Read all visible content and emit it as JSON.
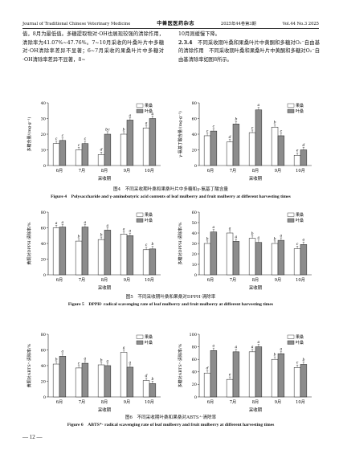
{
  "header": {
    "journal": "Journal of Traditional Chinese Veterinary Medicine",
    "logo": "中兽医医药杂志",
    "issue": "2025年44卷第3期",
    "volume": "Vol.44  No.3  2025"
  },
  "body": {
    "left": "值，8月为最低值。多糖提取物对·OH也展现较强的清除作用，清除率为41.07%~47.76%。7~10月采收的叶桑叶片中多糖对·OH清除率差异不显著；6~7月采收的果桑叶片中多糖对·OH清除率差异不显著，8~",
    "right_cont": "10月则缓慢下降。",
    "section_num": "2.3.4",
    "section_text": "不同采收期叶桑和果桑叶片中黄酮和多糖对O₂⁻自由基的清除作用　不同采收期叶桑和果桑叶片中黄酮和多糖对O₂⁻自由基清除率如图8所示。"
  },
  "figures": {
    "fig4": {
      "title_cn": "图4　不同采收期叶桑和果桑叶片中多糖和γ-氨基丁酸含量",
      "title_en": "Figure 4　Polysaccharide and γ-aminobutyric acid contents of leaf mulberry and fruit mulberry at different harvesting times"
    },
    "fig5": {
      "title_cn": "图5　不同采收期叶桑和果桑对DPPH·清除率",
      "title_en": "Figure 5　DPPH· radical scavenging rate of leaf mulberry and fruit mulberry at different harvesting times"
    },
    "fig6": {
      "title_cn": "图6　不同采收期叶桑和果桑对ABTS⁺·清除率",
      "title_en": "Figure 6　ABTS⁺· radical scavenging rate of leaf mulberry and fruit mulberry at different harvesting times"
    }
  },
  "page_number": "— 12 —",
  "colors": {
    "fruit_bar": "#ffffff",
    "leaf_bar": "#8c8c8c",
    "axis": "#222222"
  },
  "chart_data": [
    {
      "id": "fig4a",
      "type": "bar",
      "xlabel": "采收期",
      "ylabel": "多糖含量/(mg·g⁻¹)",
      "categories": [
        "6月",
        "7月",
        "8月",
        "9月",
        "10月"
      ],
      "ylim": [
        0,
        40
      ],
      "yticks": [
        0,
        10,
        20,
        30,
        40
      ],
      "legend": [
        "果桑",
        "叶桑"
      ],
      "series": [
        {
          "name": "果桑",
          "values": [
            14,
            10,
            7,
            20,
            24
          ],
          "letters": [
            "c",
            "c",
            "d",
            "b",
            "a"
          ]
        },
        {
          "name": "叶桑",
          "values": [
            16,
            14,
            20,
            29,
            30
          ],
          "letters": [
            "c",
            "c",
            "bc",
            "a",
            "a"
          ]
        }
      ]
    },
    {
      "id": "fig4b",
      "type": "bar",
      "xlabel": "采收期",
      "ylabel": "γ-氨基丁酸含量/(mg·g⁻¹)",
      "categories": [
        "6月",
        "7月",
        "8月",
        "9月",
        "10月"
      ],
      "ylim": [
        0,
        80
      ],
      "yticks": [
        0,
        20,
        40,
        60,
        80
      ],
      "legend": [
        "果桑",
        "叶桑"
      ],
      "series": [
        {
          "name": "果桑",
          "values": [
            38,
            30,
            42,
            49,
            13
          ],
          "letters": [
            "c",
            "d",
            "c",
            "b",
            "e"
          ]
        },
        {
          "name": "叶桑",
          "values": [
            44,
            53,
            71,
            38,
            20
          ],
          "letters": [
            "c",
            "b",
            "a",
            "c",
            "d"
          ]
        }
      ]
    },
    {
      "id": "fig5a",
      "type": "bar",
      "xlabel": "采收期",
      "ylabel": "黄酮对DPPH·清除率/%",
      "categories": [
        "6月",
        "7月",
        "8月",
        "9月",
        "10月"
      ],
      "ylim": [
        0,
        80
      ],
      "yticks": [
        0,
        20,
        40,
        60,
        80
      ],
      "legend": [
        "果桑",
        "叶桑"
      ],
      "series": [
        {
          "name": "果桑",
          "values": [
            60,
            43,
            45,
            52,
            32
          ],
          "letters": [
            "a",
            "b",
            "b",
            "a",
            "c"
          ]
        },
        {
          "name": "叶桑",
          "values": [
            61,
            61,
            57,
            50,
            33
          ],
          "letters": [
            "a",
            "a",
            "a",
            "a",
            "b"
          ]
        }
      ]
    },
    {
      "id": "fig5b",
      "type": "bar",
      "xlabel": "采收期",
      "ylabel": "多糖对DPPH·清除率/%",
      "categories": [
        "6月",
        "7月",
        "8月",
        "9月",
        "10月"
      ],
      "ylim": [
        0,
        60
      ],
      "yticks": [
        0,
        10,
        20,
        30,
        40,
        50,
        60
      ],
      "legend": [
        "果桑",
        "叶桑"
      ],
      "series": [
        {
          "name": "果桑",
          "values": [
            30,
            40,
            35,
            30,
            25
          ],
          "letters": [
            "b",
            "a",
            "b",
            "b",
            "c"
          ]
        },
        {
          "name": "叶桑",
          "values": [
            41,
            32,
            31,
            33,
            29
          ],
          "letters": [
            "a",
            "a",
            "a",
            "a",
            "a"
          ]
        }
      ]
    },
    {
      "id": "fig6a",
      "type": "bar",
      "xlabel": "采收期",
      "ylabel": "黄酮对ABTS⁺·清除率/%",
      "categories": [
        "6月",
        "7月",
        "8月",
        "9月",
        "10月"
      ],
      "ylim": [
        0,
        80
      ],
      "yticks": [
        0,
        20,
        40,
        60,
        80
      ],
      "legend": [
        "果桑",
        "叶桑"
      ],
      "series": [
        {
          "name": "果桑",
          "values": [
            42,
            37,
            41,
            57,
            21
          ],
          "letters": [
            "b",
            "c",
            "b",
            "a",
            "d"
          ]
        },
        {
          "name": "叶桑",
          "values": [
            52,
            43,
            40,
            38,
            17
          ],
          "letters": [
            "a",
            "a",
            "a",
            "a",
            "b"
          ]
        }
      ]
    },
    {
      "id": "fig6b",
      "type": "bar",
      "xlabel": "采收期",
      "ylabel": "多糖对ABTS⁺·清除率/%",
      "categories": [
        "6月",
        "7月",
        "8月",
        "9月",
        "10月"
      ],
      "ylim": [
        0,
        100
      ],
      "yticks": [
        0,
        20,
        40,
        60,
        80,
        100
      ],
      "legend": [
        "果桑",
        "叶桑"
      ],
      "series": [
        {
          "name": "果桑",
          "values": [
            38,
            28,
            72,
            60,
            47
          ],
          "letters": [
            "d",
            "e",
            "a",
            "b",
            "c"
          ]
        },
        {
          "name": "叶桑",
          "values": [
            74,
            72,
            80,
            69,
            52
          ],
          "letters": [
            "a",
            "a",
            "a",
            "a",
            "b"
          ]
        }
      ]
    }
  ]
}
